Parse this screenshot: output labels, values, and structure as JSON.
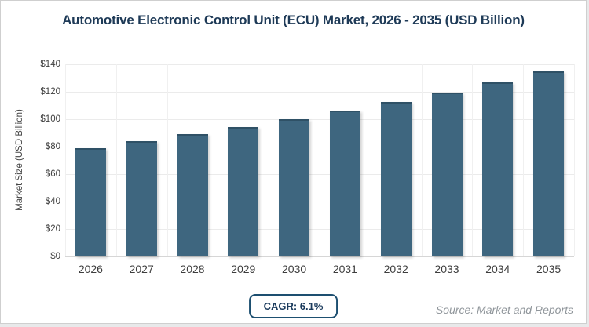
{
  "chart_data": {
    "type": "bar",
    "title": "Automotive Electronic Control Unit (ECU) Market, 2026 - 2035 (USD Billion)",
    "categories": [
      "2026",
      "2027",
      "2028",
      "2029",
      "2030",
      "2031",
      "2032",
      "2033",
      "2034",
      "2035"
    ],
    "values": [
      79.0,
      83.8,
      88.9,
      94.3,
      100.1,
      106.2,
      112.7,
      119.6,
      126.9,
      134.6
    ],
    "series_name": "Market Size",
    "xlabel": "",
    "ylabel": "Market Size (USD Billion)",
    "ylim": [
      0,
      140
    ],
    "ytick_step": 20,
    "ytick_labels": [
      "$0",
      "$20",
      "$40",
      "$60",
      "$80",
      "$100",
      "$120",
      "$140"
    ],
    "grid": true,
    "legend": false
  },
  "footer": {
    "cagr_label": "CAGR: 6.1%",
    "source": "Source: Market and Reports"
  },
  "colors": {
    "bar": "#3e667f",
    "bar_top_edge": "#2f5166",
    "title_text": "#1e3a57",
    "badge_border": "#1d4f70",
    "badge_text": "#1a3a5c",
    "axis_text": "#404040",
    "source_text": "#90969b",
    "gridline": "#ebebeb",
    "card_border": "#cfcfcf"
  }
}
